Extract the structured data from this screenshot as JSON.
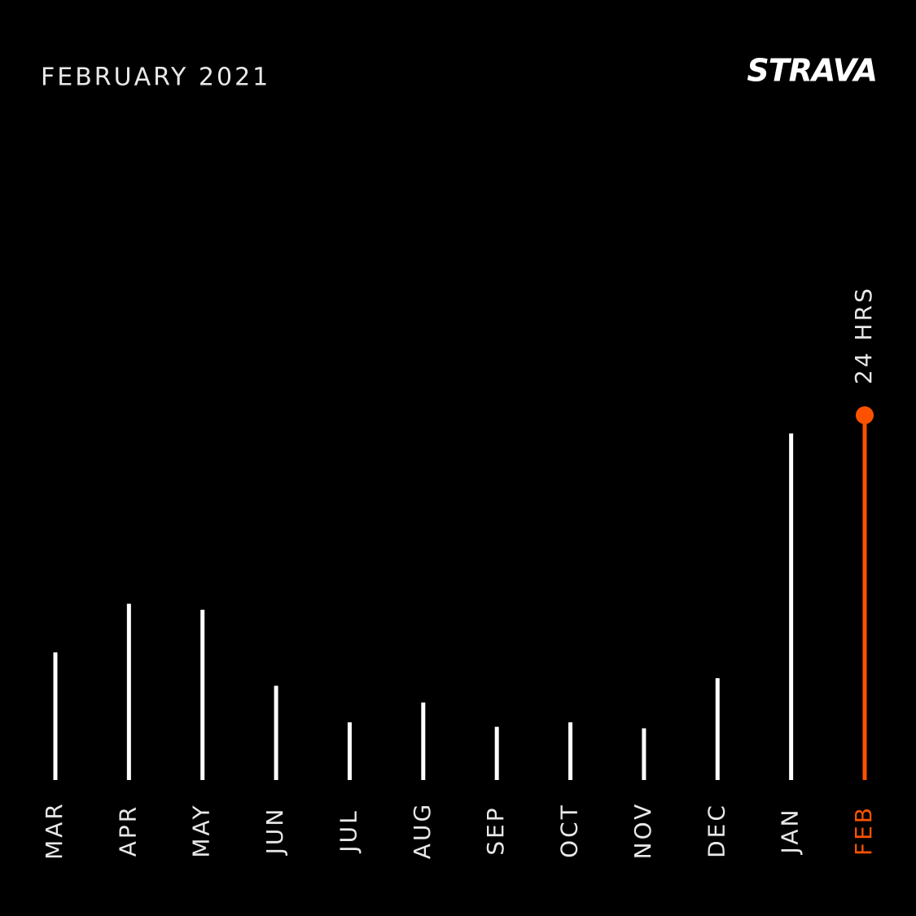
{
  "chart_data": {
    "type": "bar",
    "title": "FEBRUARY 2021",
    "brand": "STRAVA",
    "categories": [
      "MAR",
      "APR",
      "MAY",
      "JUN",
      "JUL",
      "AUG",
      "SEP",
      "OCT",
      "NOV",
      "DEC",
      "JAN",
      "FEB"
    ],
    "values": [
      8.4,
      11.6,
      11.2,
      6.2,
      3.8,
      5.1,
      3.5,
      3.8,
      3.4,
      6.7,
      22.8,
      24
    ],
    "value_labels": [
      null,
      null,
      null,
      null,
      null,
      null,
      null,
      null,
      null,
      null,
      null,
      "24 HRS"
    ],
    "colors": [
      "#ffffff",
      "#ffffff",
      "#ffffff",
      "#ffffff",
      "#ffffff",
      "#ffffff",
      "#ffffff",
      "#ffffff",
      "#ffffff",
      "#ffffff",
      "#ffffff",
      "#fc5200"
    ]
  }
}
